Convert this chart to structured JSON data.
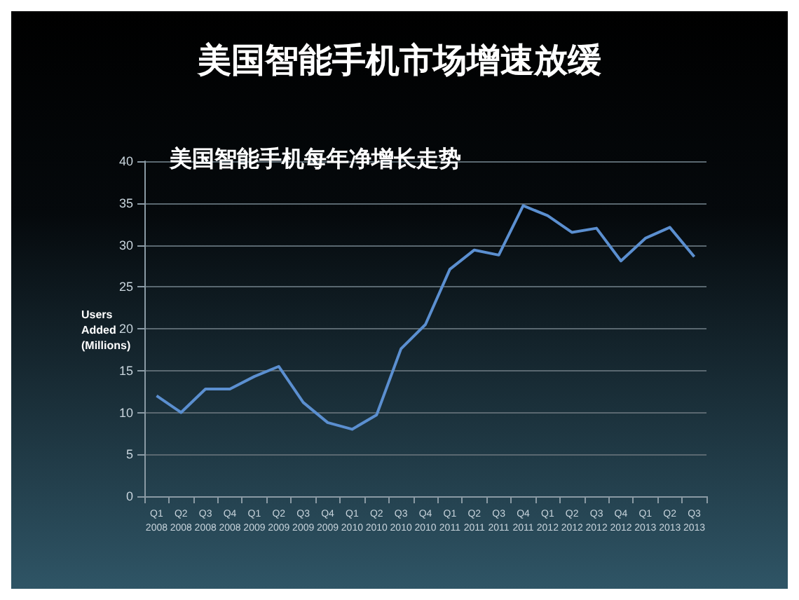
{
  "chart_data": {
    "type": "line",
    "title": "美国智能手机市场增速放缓",
    "subtitle": "美国智能手机每年净增长走势",
    "ylabel": "Users\nAdded\n(Millions)",
    "categories": [
      "Q1\n2008",
      "Q2\n2008",
      "Q3\n2008",
      "Q4\n2008",
      "Q1\n2009",
      "Q2\n2009",
      "Q3\n2009",
      "Q4\n2009",
      "Q1\n2010",
      "Q2\n2010",
      "Q3\n2010",
      "Q4\n2010",
      "Q1\n2011",
      "Q2\n2011",
      "Q3\n2011",
      "Q4\n2011",
      "Q1\n2012",
      "Q2\n2012",
      "Q3\n2012",
      "Q4\n2012",
      "Q1\n2013",
      "Q2\n2013",
      "Q3\n2013"
    ],
    "series": [
      {
        "color": "#5b8fd0",
        "values": [
          12,
          10,
          12.8,
          12.8,
          14.3,
          15.5,
          11.2,
          8.8,
          8,
          9.7,
          17.6,
          20.5,
          27.1,
          29.4,
          28.8,
          34.7,
          33.5,
          31.5,
          32,
          28.1,
          30.8,
          32.1,
          28.6
        ]
      }
    ],
    "ylim": [
      0,
      40
    ],
    "yticks": [
      0,
      5,
      10,
      15,
      20,
      25,
      30,
      35,
      40
    ],
    "grid": "y",
    "marker": "none",
    "line_style": "solid"
  }
}
